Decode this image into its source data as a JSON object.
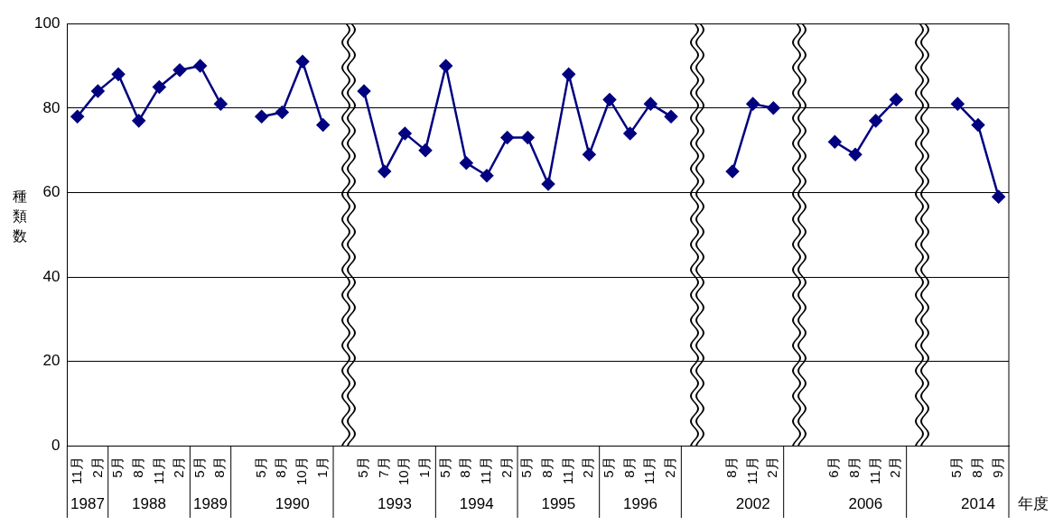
{
  "chart_data": {
    "type": "line",
    "ylabel": "種類数",
    "xlabel": "年度",
    "categories": [
      "11月",
      "2月",
      "5月",
      "8月",
      "11月",
      "2月",
      "5月",
      "8月",
      null,
      "5月",
      "8月",
      "10月",
      "1月",
      null,
      "5月",
      "7月",
      "10月",
      "1月",
      "5月",
      "8月",
      "11月",
      "2月",
      "5月",
      "8月",
      "11月",
      "2月",
      "5月",
      "8月",
      "11月",
      "2月",
      null,
      null,
      "8月",
      "11月",
      "2月",
      null,
      null,
      "6月",
      "8月",
      "11月",
      "2月",
      null,
      null,
      "5月",
      "8月",
      "9月"
    ],
    "series": [
      {
        "color": "#000080",
        "values": [
          78,
          84,
          88,
          77,
          85,
          89,
          90,
          81,
          null,
          78,
          79,
          91,
          76,
          null,
          84,
          65,
          74,
          70,
          90,
          67,
          64,
          73,
          73,
          62,
          88,
          69,
          82,
          74,
          81,
          78,
          null,
          null,
          65,
          81,
          80,
          null,
          null,
          72,
          69,
          77,
          82,
          null,
          null,
          81,
          76,
          59
        ]
      }
    ],
    "annotations": [
      "1987",
      "1988",
      "1989",
      "1990",
      "1993",
      "1994",
      "1995",
      "1996",
      "2002",
      "2006",
      "2014"
    ],
    "ylim": [
      0,
      100
    ],
    "yticks": [
      0,
      20,
      40,
      60,
      80,
      100
    ],
    "grid": "y",
    "legend": false,
    "marker": "diamond",
    "line_style": "solid"
  }
}
